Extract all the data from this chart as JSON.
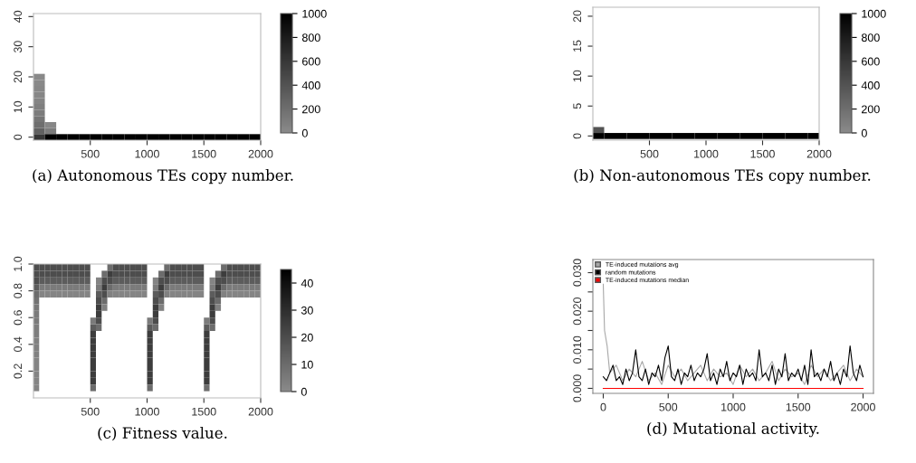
{
  "chart_data": [
    {
      "type": "heatmap",
      "title": "(a) Autonomous TEs copy number.",
      "xlim": [
        0,
        2000
      ],
      "xticks": [
        500,
        1000,
        1500,
        2000
      ],
      "ylim": [
        -1,
        41
      ],
      "yticks": [
        0,
        10,
        20,
        30,
        40
      ],
      "clim": [
        0,
        1000
      ],
      "cticks": [
        0,
        200,
        400,
        600,
        800,
        1000
      ],
      "x": [
        50,
        150,
        250,
        350,
        450,
        550,
        650,
        750,
        850,
        950,
        1050,
        1150,
        1250,
        1350,
        1450,
        1550,
        1650,
        1750,
        1850,
        1950
      ],
      "y": [
        20,
        18,
        16,
        14,
        12,
        10,
        8,
        6,
        4,
        2,
        0
      ],
      "cells": [
        [
          5,
          null,
          null,
          null,
          null,
          null,
          null,
          null,
          null,
          null,
          null,
          null,
          null,
          null,
          null,
          null,
          null,
          null,
          null,
          null
        ],
        [
          10,
          null,
          null,
          null,
          null,
          null,
          null,
          null,
          null,
          null,
          null,
          null,
          null,
          null,
          null,
          null,
          null,
          null,
          null,
          null
        ],
        [
          20,
          null,
          null,
          null,
          null,
          null,
          null,
          null,
          null,
          null,
          null,
          null,
          null,
          null,
          null,
          null,
          null,
          null,
          null,
          null
        ],
        [
          30,
          null,
          null,
          null,
          null,
          null,
          null,
          null,
          null,
          null,
          null,
          null,
          null,
          null,
          null,
          null,
          null,
          null,
          null,
          null
        ],
        [
          50,
          null,
          null,
          null,
          null,
          null,
          null,
          null,
          null,
          null,
          null,
          null,
          null,
          null,
          null,
          null,
          null,
          null,
          null,
          null
        ],
        [
          80,
          null,
          null,
          null,
          null,
          null,
          null,
          null,
          null,
          null,
          null,
          null,
          null,
          null,
          null,
          null,
          null,
          null,
          null,
          null
        ],
        [
          100,
          null,
          null,
          null,
          null,
          null,
          null,
          null,
          null,
          null,
          null,
          null,
          null,
          null,
          null,
          null,
          null,
          null,
          null,
          null
        ],
        [
          150,
          null,
          null,
          null,
          null,
          null,
          null,
          null,
          null,
          null,
          null,
          null,
          null,
          null,
          null,
          null,
          null,
          null,
          null,
          null
        ],
        [
          200,
          20,
          null,
          null,
          null,
          null,
          null,
          null,
          null,
          null,
          null,
          null,
          null,
          null,
          null,
          null,
          null,
          null,
          null,
          null
        ],
        [
          300,
          100,
          null,
          null,
          null,
          null,
          null,
          null,
          null,
          null,
          null,
          null,
          null,
          null,
          null,
          null,
          null,
          null,
          null,
          null
        ],
        [
          600,
          1000,
          1000,
          1000,
          1000,
          1000,
          1000,
          1000,
          1000,
          1000,
          1000,
          1000,
          1000,
          1000,
          1000,
          1000,
          1000,
          1000,
          1000,
          1000
        ]
      ]
    },
    {
      "type": "heatmap",
      "title": "(b) Non-autonomous TEs copy number.",
      "xlim": [
        0,
        2000
      ],
      "xticks": [
        500,
        1000,
        1500,
        2000
      ],
      "ylim": [
        -0.7,
        21.5
      ],
      "yticks": [
        0,
        5,
        10,
        15,
        20
      ],
      "clim": [
        0,
        1000
      ],
      "cticks": [
        0,
        200,
        400,
        600,
        800,
        1000
      ],
      "x": [
        50,
        150,
        250,
        350,
        450,
        550,
        650,
        750,
        850,
        950,
        1050,
        1150,
        1250,
        1350,
        1450,
        1550,
        1650,
        1750,
        1850,
        1950
      ],
      "y": [
        1,
        0
      ],
      "cells": [
        [
          400,
          null,
          null,
          null,
          null,
          null,
          null,
          null,
          null,
          null,
          null,
          null,
          null,
          null,
          null,
          null,
          null,
          null,
          null,
          null
        ],
        [
          1000,
          1000,
          1000,
          1000,
          1000,
          1000,
          1000,
          1000,
          1000,
          1000,
          1000,
          1000,
          1000,
          1000,
          1000,
          1000,
          1000,
          1000,
          1000,
          1000
        ]
      ]
    },
    {
      "type": "heatmap",
      "title": "(c) Fitness value.",
      "xlim": [
        0,
        2000
      ],
      "xticks": [
        500,
        1000,
        1500,
        2000
      ],
      "ylim": [
        0,
        1
      ],
      "yticks": [
        0.2,
        0.4,
        0.6,
        0.8,
        {
          "value": 1,
          "label": "1.0"
        }
      ],
      "clim": [
        0,
        45
      ],
      "cticks": [
        0,
        10,
        20,
        30,
        40
      ],
      "x": [
        25,
        75,
        125,
        175,
        225,
        275,
        325,
        375,
        425,
        475,
        525,
        575,
        625,
        675,
        725,
        775,
        825,
        875,
        925,
        975,
        1025,
        1075,
        1125,
        1175,
        1225,
        1275,
        1325,
        1375,
        1425,
        1475,
        1525,
        1575,
        1625,
        1675,
        1725,
        1775,
        1825,
        1875,
        1925,
        1975
      ],
      "y": [
        0.975,
        0.925,
        0.875,
        0.825,
        0.775,
        0.725,
        0.675,
        0.625,
        0.575,
        0.525,
        0.475,
        0.425,
        0.375,
        0.325,
        0.275,
        0.225,
        0.175,
        0.125,
        0.075
      ],
      "cells": [
        [
          20,
          20,
          20,
          20,
          20,
          20,
          20,
          20,
          20,
          20,
          null,
          null,
          null,
          10,
          20,
          20,
          20,
          20,
          20,
          20,
          null,
          null,
          null,
          10,
          20,
          20,
          20,
          20,
          20,
          20,
          null,
          null,
          null,
          10,
          20,
          20,
          20,
          20,
          20,
          20
        ],
        [
          20,
          20,
          20,
          20,
          20,
          20,
          20,
          20,
          20,
          20,
          null,
          null,
          10,
          25,
          20,
          20,
          20,
          20,
          20,
          20,
          null,
          null,
          10,
          25,
          20,
          20,
          20,
          20,
          20,
          20,
          null,
          null,
          10,
          25,
          20,
          20,
          20,
          20,
          20,
          20
        ],
        [
          20,
          15,
          15,
          15,
          15,
          15,
          15,
          15,
          15,
          15,
          null,
          2,
          20,
          20,
          15,
          15,
          15,
          15,
          15,
          15,
          null,
          2,
          20,
          20,
          15,
          15,
          15,
          15,
          15,
          15,
          null,
          2,
          20,
          20,
          15,
          15,
          15,
          15,
          15,
          15
        ],
        [
          15,
          5,
          5,
          5,
          5,
          5,
          5,
          5,
          5,
          5,
          null,
          5,
          25,
          10,
          5,
          5,
          5,
          5,
          5,
          5,
          null,
          5,
          25,
          10,
          5,
          5,
          5,
          5,
          5,
          5,
          null,
          5,
          25,
          10,
          5,
          5,
          5,
          5,
          5,
          5
        ],
        [
          10,
          2,
          2,
          2,
          2,
          2,
          2,
          2,
          2,
          2,
          null,
          15,
          20,
          3,
          2,
          2,
          2,
          2,
          2,
          2,
          null,
          15,
          20,
          3,
          2,
          2,
          2,
          2,
          2,
          2,
          null,
          15,
          20,
          3,
          2,
          2,
          2,
          2,
          2,
          2
        ],
        [
          8,
          null,
          null,
          null,
          null,
          null,
          null,
          null,
          null,
          null,
          null,
          20,
          10,
          null,
          null,
          null,
          null,
          null,
          null,
          null,
          null,
          20,
          10,
          null,
          null,
          null,
          null,
          null,
          null,
          null,
          null,
          20,
          10,
          null,
          null,
          null,
          null,
          null,
          null,
          null
        ],
        [
          6,
          null,
          null,
          null,
          null,
          null,
          null,
          null,
          null,
          null,
          null,
          25,
          3,
          null,
          null,
          null,
          null,
          null,
          null,
          null,
          null,
          25,
          3,
          null,
          null,
          null,
          null,
          null,
          null,
          null,
          null,
          25,
          3,
          null,
          null,
          null,
          null,
          null,
          null,
          null
        ],
        [
          5,
          null,
          null,
          null,
          null,
          null,
          null,
          null,
          null,
          null,
          null,
          25,
          null,
          null,
          null,
          null,
          null,
          null,
          null,
          null,
          null,
          25,
          null,
          null,
          null,
          null,
          null,
          null,
          null,
          null,
          null,
          25,
          null,
          null,
          null,
          null,
          null,
          null,
          null,
          null
        ],
        [
          5,
          null,
          null,
          null,
          null,
          null,
          null,
          null,
          null,
          null,
          5,
          20,
          null,
          null,
          null,
          null,
          null,
          null,
          null,
          null,
          5,
          20,
          null,
          null,
          null,
          null,
          null,
          null,
          null,
          null,
          5,
          20,
          null,
          null,
          null,
          null,
          null,
          null,
          null,
          null
        ],
        [
          4,
          null,
          null,
          null,
          null,
          null,
          null,
          null,
          null,
          null,
          15,
          10,
          null,
          null,
          null,
          null,
          null,
          null,
          null,
          null,
          15,
          10,
          null,
          null,
          null,
          null,
          null,
          null,
          null,
          null,
          15,
          10,
          null,
          null,
          null,
          null,
          null,
          null,
          null,
          null
        ],
        [
          4,
          null,
          null,
          null,
          null,
          null,
          null,
          null,
          null,
          null,
          25,
          null,
          null,
          null,
          null,
          null,
          null,
          null,
          null,
          null,
          25,
          null,
          null,
          null,
          null,
          null,
          null,
          null,
          null,
          null,
          25,
          null,
          null,
          null,
          null,
          null,
          null,
          null,
          null,
          null
        ],
        [
          3,
          null,
          null,
          null,
          null,
          null,
          null,
          null,
          null,
          null,
          25,
          null,
          null,
          null,
          null,
          null,
          null,
          null,
          null,
          null,
          25,
          null,
          null,
          null,
          null,
          null,
          null,
          null,
          null,
          null,
          25,
          null,
          null,
          null,
          null,
          null,
          null,
          null,
          null,
          null
        ],
        [
          3,
          null,
          null,
          null,
          null,
          null,
          null,
          null,
          null,
          null,
          25,
          null,
          null,
          null,
          null,
          null,
          null,
          null,
          null,
          null,
          25,
          null,
          null,
          null,
          null,
          null,
          null,
          null,
          null,
          null,
          25,
          null,
          null,
          null,
          null,
          null,
          null,
          null,
          null,
          null
        ],
        [
          3,
          null,
          null,
          null,
          null,
          null,
          null,
          null,
          null,
          null,
          25,
          null,
          null,
          null,
          null,
          null,
          null,
          null,
          null,
          null,
          25,
          null,
          null,
          null,
          null,
          null,
          null,
          null,
          null,
          null,
          25,
          null,
          null,
          null,
          null,
          null,
          null,
          null,
          null,
          null
        ],
        [
          2,
          null,
          null,
          null,
          null,
          null,
          null,
          null,
          null,
          null,
          25,
          null,
          null,
          null,
          null,
          null,
          null,
          null,
          null,
          null,
          25,
          null,
          null,
          null,
          null,
          null,
          null,
          null,
          null,
          null,
          25,
          null,
          null,
          null,
          null,
          null,
          null,
          null,
          null,
          null
        ],
        [
          2,
          null,
          null,
          null,
          null,
          null,
          null,
          null,
          null,
          null,
          25,
          null,
          null,
          null,
          null,
          null,
          null,
          null,
          null,
          null,
          25,
          null,
          null,
          null,
          null,
          null,
          null,
          null,
          null,
          null,
          25,
          null,
          null,
          null,
          null,
          null,
          null,
          null,
          null,
          null
        ],
        [
          2,
          null,
          null,
          null,
          null,
          null,
          null,
          null,
          null,
          null,
          25,
          null,
          null,
          null,
          null,
          null,
          null,
          null,
          null,
          null,
          25,
          null,
          null,
          null,
          null,
          null,
          null,
          null,
          null,
          null,
          25,
          null,
          null,
          null,
          null,
          null,
          null,
          null,
          null,
          null
        ],
        [
          2,
          null,
          null,
          null,
          null,
          null,
          null,
          null,
          null,
          null,
          25,
          null,
          null,
          null,
          null,
          null,
          null,
          null,
          null,
          null,
          25,
          null,
          null,
          null,
          null,
          null,
          null,
          null,
          null,
          null,
          25,
          null,
          null,
          null,
          null,
          null,
          null,
          null,
          null,
          null
        ],
        [
          2,
          null,
          null,
          null,
          null,
          null,
          null,
          null,
          null,
          null,
          10,
          null,
          null,
          null,
          null,
          null,
          null,
          null,
          null,
          null,
          10,
          null,
          null,
          null,
          null,
          null,
          null,
          null,
          null,
          null,
          10,
          null,
          null,
          null,
          null,
          null,
          null,
          null,
          null,
          null
        ]
      ]
    },
    {
      "type": "line",
      "title": "(d) Mutational activity.",
      "xlim": [
        -80,
        2080
      ],
      "xticks": [
        0,
        500,
        1000,
        1500,
        2000
      ],
      "ylim": [
        -0.0013,
        0.0334
      ],
      "yticks": [
        {
          "value": 0,
          "label": "0.000"
        },
        {
          "value": 0.005,
          "label": null
        },
        {
          "value": 0.01,
          "label": "0.010"
        },
        {
          "value": 0.015,
          "label": null
        },
        {
          "value": 0.02,
          "label": "0.020"
        },
        {
          "value": 0.025,
          "label": null
        },
        {
          "value": 0.03,
          "label": "0.030"
        }
      ],
      "legend": "top left",
      "series": [
        {
          "name": "TE-induced mutations avg",
          "color": "#a8a8a8",
          "x": [
            0,
            10,
            30,
            50,
            100,
            150,
            200,
            250,
            300,
            350,
            400,
            450,
            500,
            550,
            600,
            650,
            700,
            750,
            800,
            850,
            900,
            950,
            1000,
            1050,
            1100,
            1150,
            1200,
            1250,
            1300,
            1350,
            1400,
            1450,
            1500,
            1550,
            1600,
            1650,
            1700,
            1750,
            1800,
            1850,
            1900,
            1950,
            2000
          ],
          "values": [
            0.027,
            0.015,
            0.011,
            0.004,
            0.006,
            0.002,
            0.005,
            0.003,
            0.007,
            0.002,
            0.004,
            0.001,
            0.006,
            0.003,
            0.005,
            0.002,
            0.004,
            0.006,
            0.002,
            0.005,
            0.003,
            0.004,
            0.001,
            0.006,
            0.003,
            0.005,
            0.002,
            0.004,
            0.007,
            0.002,
            0.005,
            0.003,
            0.004,
            0.001,
            0.006,
            0.003,
            0.005,
            0.002,
            0.004,
            0.006,
            0.002,
            0.005,
            0.003
          ]
        },
        {
          "name": "random mutations",
          "color": "#000000",
          "x": [
            0,
            25,
            50,
            75,
            100,
            125,
            150,
            175,
            200,
            225,
            250,
            275,
            300,
            325,
            350,
            375,
            400,
            425,
            450,
            475,
            500,
            525,
            550,
            575,
            600,
            625,
            650,
            675,
            700,
            725,
            750,
            775,
            800,
            825,
            850,
            875,
            900,
            925,
            950,
            975,
            1000,
            1025,
            1050,
            1075,
            1100,
            1125,
            1150,
            1175,
            1200,
            1225,
            1250,
            1275,
            1300,
            1325,
            1350,
            1375,
            1400,
            1425,
            1450,
            1475,
            1500,
            1525,
            1550,
            1575,
            1600,
            1625,
            1650,
            1675,
            1700,
            1725,
            1750,
            1775,
            1800,
            1825,
            1850,
            1875,
            1900,
            1925,
            1950,
            1975,
            2000
          ],
          "values": [
            0.003,
            0.002,
            0.004,
            0.006,
            0.002,
            0.003,
            0.001,
            0.005,
            0.002,
            0.004,
            0.01,
            0.003,
            0.002,
            0.005,
            0.001,
            0.004,
            0.003,
            0.006,
            0.002,
            0.008,
            0.011,
            0.003,
            0.002,
            0.005,
            0.001,
            0.004,
            0.003,
            0.006,
            0.002,
            0.004,
            0.003,
            0.005,
            0.009,
            0.002,
            0.004,
            0.001,
            0.005,
            0.003,
            0.007,
            0.002,
            0.004,
            0.003,
            0.006,
            0.001,
            0.005,
            0.003,
            0.004,
            0.002,
            0.01,
            0.003,
            0.004,
            0.002,
            0.006,
            0.001,
            0.005,
            0.003,
            0.009,
            0.002,
            0.004,
            0.003,
            0.005,
            0.002,
            0.006,
            0.001,
            0.01,
            0.003,
            0.004,
            0.002,
            0.005,
            0.003,
            0.007,
            0.002,
            0.004,
            0.001,
            0.005,
            0.003,
            0.011,
            0.004,
            0.002,
            0.006,
            0.003
          ]
        },
        {
          "name": "TE-induced mutations median",
          "color": "#ff0000",
          "x": [
            0,
            2000
          ],
          "values": [
            0,
            0
          ]
        }
      ]
    }
  ]
}
